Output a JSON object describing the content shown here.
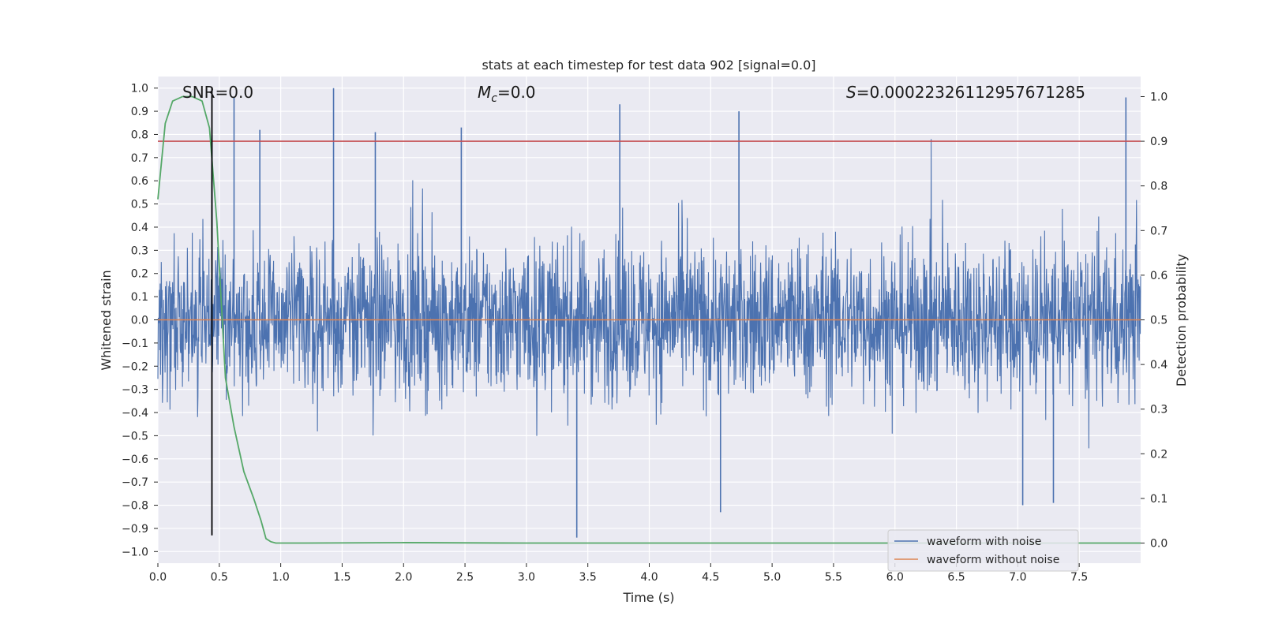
{
  "chart_data": {
    "type": "line",
    "title": "stats at each timestep for test data 902 [signal=0.0]",
    "xlabel": "Time (s)",
    "ylabel_left": "Whitened strain",
    "ylabel_right": "Detection probability",
    "xlim": [
      0.0,
      8.0
    ],
    "ylim_left": [
      -1.05,
      1.05
    ],
    "ylim_right": [
      -0.045,
      1.045
    ],
    "x_ticks": [
      "0.0",
      "0.5",
      "1.0",
      "1.5",
      "2.0",
      "2.5",
      "3.0",
      "3.5",
      "4.0",
      "4.5",
      "5.0",
      "5.5",
      "6.0",
      "6.5",
      "7.0",
      "7.5"
    ],
    "y_left_ticks": [
      "1.0",
      "0.9",
      "0.8",
      "0.7",
      "0.6",
      "0.5",
      "0.4",
      "0.3",
      "0.2",
      "0.1",
      "0.0",
      "−0.1",
      "−0.2",
      "−0.3",
      "−0.4",
      "−0.5",
      "−0.6",
      "−0.7",
      "−0.8",
      "−0.9",
      "−1.0"
    ],
    "y_right_ticks": [
      "1.0",
      "0.9",
      "0.8",
      "0.7",
      "0.6",
      "0.5",
      "0.4",
      "0.3",
      "0.2",
      "0.1",
      "0.0"
    ],
    "annotations": {
      "snr_label": "SNR=0.0",
      "mc_symbol": "M",
      "mc_sub": "c",
      "mc_value": "=0.0",
      "s_symbol": "S",
      "s_value": "=0.00022326112957671285"
    },
    "grid": true,
    "legend": {
      "placement": "lower-right",
      "entries": [
        "waveform with noise",
        "waveform without noise"
      ]
    },
    "colors": {
      "noise": "#4c72b0",
      "clean": "#dd8452",
      "probability": "#55a868",
      "threshold": "#c44e52",
      "marker": "#000000",
      "background": "#eaeaf2"
    },
    "series": [
      {
        "name": "waveform with noise",
        "axis": "left",
        "style": "dense-noise",
        "duration": 8.0,
        "typical_amplitude": 0.4,
        "peak_events": [
          {
            "x": 0.44,
            "y": 0.8
          },
          {
            "x": 0.62,
            "y": 0.96
          },
          {
            "x": 0.83,
            "y": 0.82
          },
          {
            "x": 1.43,
            "y": 1.0
          },
          {
            "x": 1.77,
            "y": 0.81
          },
          {
            "x": 2.47,
            "y": 0.83
          },
          {
            "x": 3.41,
            "y": -0.94
          },
          {
            "x": 3.76,
            "y": 0.93
          },
          {
            "x": 4.58,
            "y": -0.83
          },
          {
            "x": 4.73,
            "y": 0.9
          },
          {
            "x": 7.04,
            "y": -0.8
          },
          {
            "x": 7.29,
            "y": -0.79
          },
          {
            "x": 7.88,
            "y": 0.96
          }
        ]
      },
      {
        "name": "waveform without noise",
        "axis": "left",
        "x": [
          0.0,
          8.0
        ],
        "y": [
          0.0,
          0.0
        ]
      },
      {
        "name": "detection probability",
        "axis": "right",
        "x": [
          0.0,
          0.06,
          0.12,
          0.2,
          0.28,
          0.36,
          0.42,
          0.48,
          0.55,
          0.62,
          0.7,
          0.78,
          0.84,
          0.88,
          0.92,
          0.96,
          1.2,
          2.0,
          3.0,
          4.0,
          5.0,
          6.0,
          7.0,
          8.0
        ],
        "y": [
          0.77,
          0.94,
          0.99,
          1.0,
          1.0,
          0.99,
          0.93,
          0.72,
          0.37,
          0.26,
          0.16,
          0.1,
          0.05,
          0.01,
          0.003,
          0.0,
          0.0,
          0.001,
          0.0,
          0.0,
          0.0,
          0.0,
          0.0,
          0.0
        ]
      }
    ],
    "threshold": {
      "axis": "right",
      "y": 0.9
    },
    "marker_line": {
      "x": 0.44,
      "y_range": [
        -0.93,
        1.0
      ]
    }
  }
}
